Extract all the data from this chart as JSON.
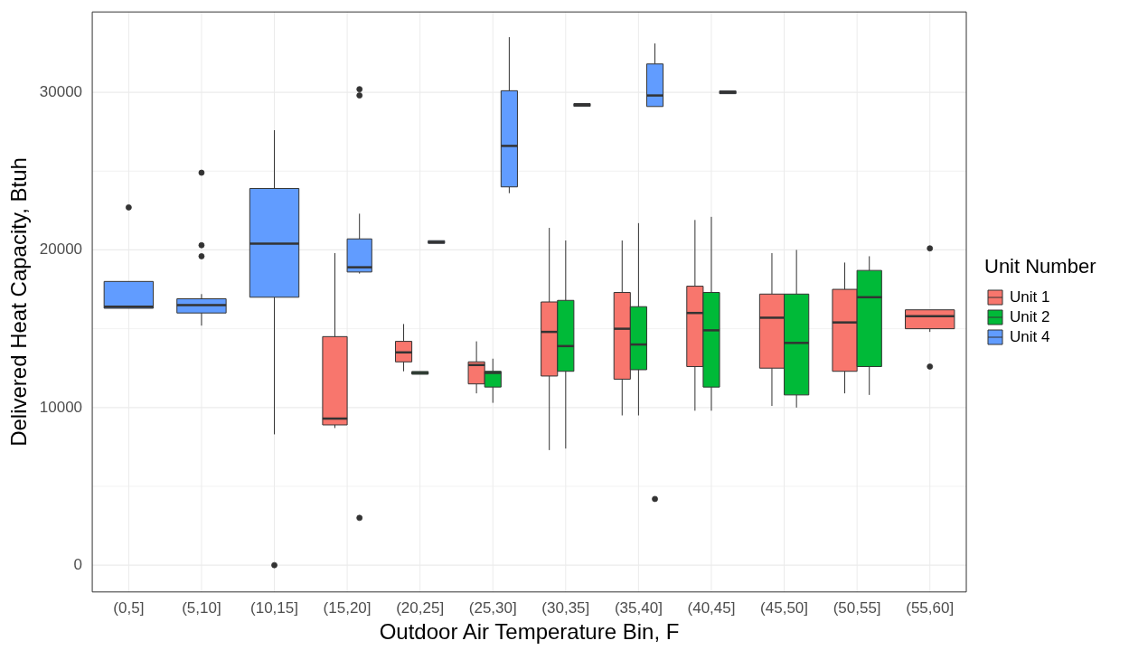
{
  "chart_data": {
    "type": "box",
    "xlabel": "Outdoor Air Temperature Bin, F",
    "ylabel": "Delivered Heat Capacity, Btuh",
    "legend_title": "Unit Number",
    "legend": "right",
    "grid": true,
    "categories": [
      "(0,5]",
      "(5,10]",
      "(10,15]",
      "(15,20]",
      "(20,25]",
      "(25,30]",
      "(30,35]",
      "(35,40]",
      "(40,45]",
      "(45,50]",
      "(50,55]",
      "(55,60]"
    ],
    "ylim": [
      -1700,
      35100
    ],
    "yticks": [
      0,
      {
        "value": 5000,
        "label": null
      },
      10000,
      {
        "value": 15000,
        "label": null
      },
      20000,
      {
        "value": 25000,
        "label": null
      },
      30000
    ],
    "series": [
      {
        "name": "Unit 1",
        "color": "#f8766d",
        "boxes": [
          null,
          null,
          null,
          {
            "low": 8700,
            "q1": 8900,
            "median": 9300,
            "q3": 14500,
            "high": 19800
          },
          {
            "low": 12300,
            "q1": 12900,
            "median": 13500,
            "q3": 14200,
            "high": 15300
          },
          {
            "low": 10900,
            "q1": 11500,
            "median": 12700,
            "q3": 12900,
            "high": 14200
          },
          {
            "low": 7300,
            "q1": 12000,
            "median": 14800,
            "q3": 16700,
            "high": 21400
          },
          {
            "low": 9500,
            "q1": 11800,
            "median": 15000,
            "q3": 17300,
            "high": 20600
          },
          {
            "low": 9800,
            "q1": 12600,
            "median": 16000,
            "q3": 17700,
            "high": 21900
          },
          {
            "low": 10100,
            "q1": 12500,
            "median": 15700,
            "q3": 17200,
            "high": 19800
          },
          {
            "low": 10900,
            "q1": 12300,
            "median": 15400,
            "q3": 17500,
            "high": 19200
          },
          {
            "low": 14800,
            "q1": 15000,
            "median": 15800,
            "q3": 16200,
            "high": 16200,
            "outliers": [
              20100,
              12600
            ]
          }
        ]
      },
      {
        "name": "Unit 2",
        "color": "#00ba38",
        "boxes": [
          null,
          null,
          null,
          null,
          {
            "low": 12200,
            "q1": 12200,
            "median": 12200,
            "q3": 12200,
            "high": 12200
          },
          {
            "low": 10300,
            "q1": 11300,
            "median": 12200,
            "q3": 12300,
            "high": 13100
          },
          {
            "low": 7400,
            "q1": 12300,
            "median": 13900,
            "q3": 16800,
            "high": 20600
          },
          {
            "low": 9500,
            "q1": 12400,
            "median": 14000,
            "q3": 16400,
            "high": 21700
          },
          {
            "low": 9800,
            "q1": 11300,
            "median": 14900,
            "q3": 17300,
            "high": 22100
          },
          {
            "low": 10000,
            "q1": 10800,
            "median": 14100,
            "q3": 17200,
            "high": 20000
          },
          {
            "low": 10800,
            "q1": 12600,
            "median": 17000,
            "q3": 18700,
            "high": 19600
          },
          null
        ]
      },
      {
        "name": "Unit 4",
        "color": "#619cff",
        "boxes": [
          {
            "low": 16300,
            "q1": 16300,
            "median": 16400,
            "q3": 18000,
            "high": 18000,
            "outliers": [
              22700
            ]
          },
          {
            "low": 15200,
            "q1": 16000,
            "median": 16500,
            "q3": 16900,
            "high": 17200,
            "outliers": [
              24900,
              20300,
              19600
            ]
          },
          {
            "low": 8300,
            "q1": 17000,
            "median": 20400,
            "q3": 23900,
            "high": 27600,
            "outliers": [
              0
            ]
          },
          {
            "low": 18500,
            "q1": 18600,
            "median": 18900,
            "q3": 20700,
            "high": 22300,
            "outliers": [
              30200,
              29800,
              3000
            ]
          },
          {
            "low": 20500,
            "q1": 20500,
            "median": 20500,
            "q3": 20500,
            "high": 20500
          },
          {
            "low": 23600,
            "q1": 24000,
            "median": 26600,
            "q3": 30100,
            "high": 33500
          },
          {
            "low": 29200,
            "q1": 29200,
            "median": 29200,
            "q3": 29200,
            "high": 29200
          },
          {
            "low": 29100,
            "q1": 29100,
            "median": 29800,
            "q3": 31800,
            "high": 33100,
            "outliers": [
              4200
            ]
          },
          {
            "low": 30000,
            "q1": 30000,
            "median": 30000,
            "q3": 30000,
            "high": 30000
          },
          null,
          null,
          null
        ]
      }
    ]
  }
}
